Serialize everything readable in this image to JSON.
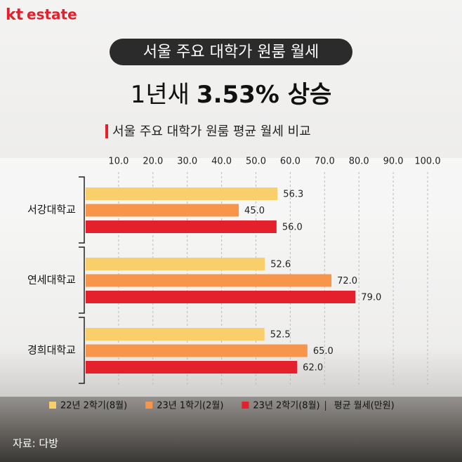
{
  "logo": {
    "brand": "kt",
    "name": "estate"
  },
  "badge": "서울 주요 대학가 원룸 월세",
  "headline": {
    "prefix": "1년새",
    "highlight": "3.53% 상승"
  },
  "source": "자료: 다방",
  "chart_data": {
    "type": "bar",
    "orientation": "horizontal",
    "title": "서울 주요 대학가 원룸 평균 월세 비교",
    "categories": [
      "서강대학교",
      "연세대학교",
      "경희대학교"
    ],
    "series": [
      {
        "name": "22년 2학기(8월)",
        "color": "#f9cf6b",
        "values": [
          56.3,
          52.6,
          52.5
        ],
        "value_labels": [
          "56.3",
          "52.6",
          "52.5"
        ]
      },
      {
        "name": "23년 1학기(2월)",
        "color": "#f7964a",
        "values": [
          45,
          72,
          65
        ],
        "value_labels": [
          "45.0",
          "72.0",
          "65.0"
        ]
      },
      {
        "name": "23년 2학기(8월)",
        "color": "#e3202b",
        "values": [
          56,
          79,
          62
        ],
        "value_labels": [
          "56.0",
          "79.0",
          "62.0"
        ]
      }
    ],
    "unit_note": "평균 월세(만원)",
    "xlim": [
      0,
      100
    ],
    "xticks": [
      {
        "value": 10,
        "label": "10.0"
      },
      {
        "value": 20,
        "label": "20.0"
      },
      {
        "value": 30,
        "label": "30.0"
      },
      {
        "value": 40,
        "label": "40.0"
      },
      {
        "value": 50,
        "label": "50.0"
      },
      {
        "value": 60,
        "label": "60.0"
      },
      {
        "value": 70,
        "label": "70.0"
      },
      {
        "value": 80,
        "label": "80.0"
      },
      {
        "value": 90,
        "label": "90.0"
      },
      {
        "value": 100,
        "label": "100.0"
      }
    ],
    "grid": true
  }
}
